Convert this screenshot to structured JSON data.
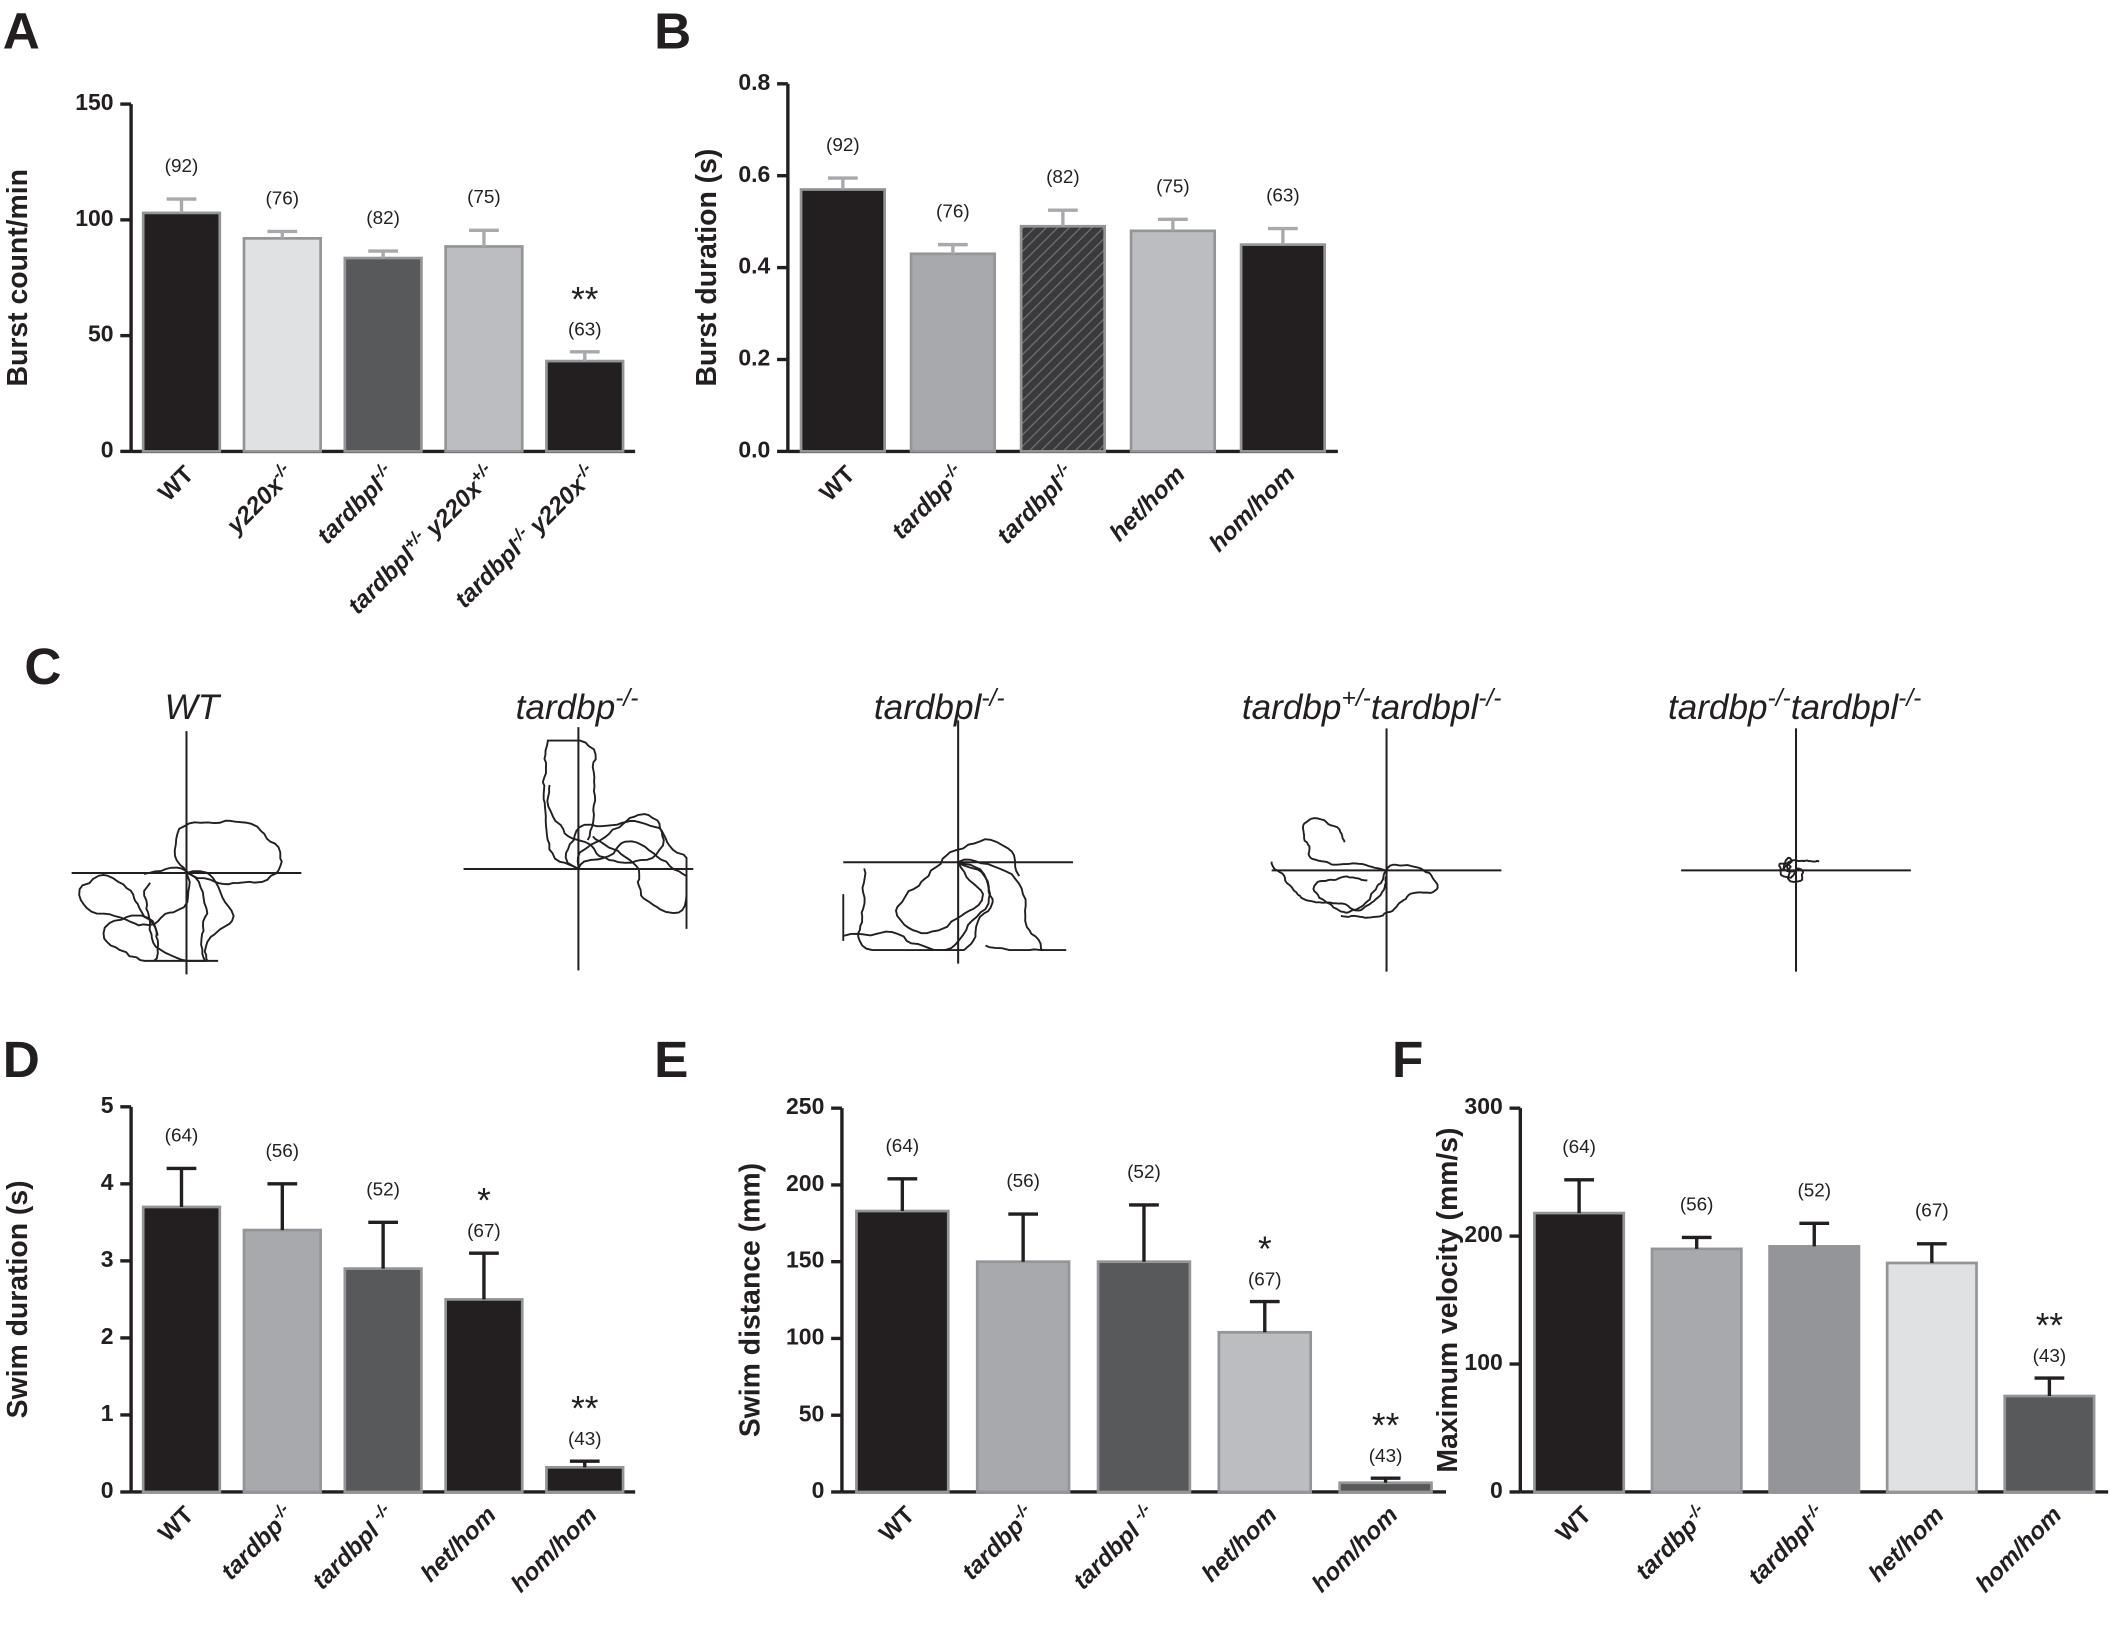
{
  "chart_data": [
    {
      "type": "bar",
      "panel_label": "A",
      "y_label": "Burst count/min",
      "categories": [
        "WT",
        "y220x-/-",
        "tardbpl-/-",
        "tardbpl+/- y220x+/-",
        "tardbpl-/- y220x-/-"
      ],
      "values": [
        103,
        92,
        83.5,
        88.5,
        39
      ],
      "errors": [
        6,
        3,
        3,
        7,
        4
      ],
      "colors": [
        "#231f20",
        "#e0e1e2",
        "#58595b",
        "#bcbdc0",
        "#231f20"
      ],
      "error_color": "#a7a9ac",
      "n_labels": [
        "(92)",
        "(76)",
        "(82)",
        "(75)",
        "(63)"
      ],
      "significance": [
        null,
        null,
        null,
        null,
        "**"
      ],
      "ylim": [
        0,
        150
      ],
      "yticks": [
        0,
        50,
        100,
        150
      ]
    },
    {
      "type": "bar",
      "panel_label": "B",
      "y_label": "Burst duration (s)",
      "categories": [
        "WT",
        "tardbp-/-",
        "tardbpl-/-",
        "het/hom",
        "hom/hom"
      ],
      "values": [
        0.57,
        0.43,
        0.49,
        0.48,
        0.45
      ],
      "errors": [
        0.025,
        0.02,
        0.035,
        0.025,
        0.035
      ],
      "colors": [
        "#231f20",
        "#a7a9ac",
        "#3a3a3c",
        "#bcbdc0",
        "#231f20"
      ],
      "hatched": [
        false,
        false,
        true,
        false,
        false
      ],
      "error_color": "#a7a9ac",
      "n_labels": [
        "(92)",
        "(76)",
        "(82)",
        "(75)",
        "(63)"
      ],
      "ylim": [
        0,
        0.8
      ],
      "yticks": [
        {
          "value": 0,
          "label": "0.0"
        },
        0.2,
        0.4,
        0.6,
        0.8
      ]
    },
    {
      "type": "bar",
      "panel_label": "D",
      "y_label": "Swim duration (s)",
      "categories": [
        "WT",
        "tardbp-/-",
        "tardbpl -/-",
        "het/hom",
        "hom/hom"
      ],
      "values": [
        3.7,
        3.4,
        2.9,
        2.5,
        0.32
      ],
      "errors": [
        0.5,
        0.6,
        0.6,
        0.6,
        0.08
      ],
      "colors": [
        "#231f20",
        "#a7a9ac",
        "#58595b",
        "#231f20",
        "#231f20"
      ],
      "error_color": "#231f20",
      "n_labels": [
        "(64)",
        "(56)",
        "(52)",
        "(67)",
        "(43)"
      ],
      "significance": [
        null,
        null,
        null,
        "*",
        "**"
      ],
      "ylim": [
        0,
        5
      ],
      "yticks": [
        0,
        1,
        2,
        3,
        4,
        5
      ]
    },
    {
      "type": "bar",
      "panel_label": "E",
      "y_label": "Swim distance (mm)",
      "categories": [
        "WT",
        "tardbp-/-",
        "tardbpl -/-",
        "het/hom",
        "hom/hom"
      ],
      "values": [
        183,
        150,
        150,
        104,
        6
      ],
      "errors": [
        21,
        31,
        37,
        20,
        3
      ],
      "colors": [
        "#231f20",
        "#a7a9ac",
        "#58595b",
        "#bcbdc0",
        "#58595b"
      ],
      "error_color": "#231f20",
      "n_labels": [
        "(64)",
        "(56)",
        "(52)",
        "(67)",
        "(43)"
      ],
      "significance": [
        null,
        null,
        null,
        "*",
        "**"
      ],
      "ylim": [
        0,
        250
      ],
      "yticks": [
        0,
        50,
        100,
        150,
        200,
        250
      ]
    },
    {
      "type": "bar",
      "panel_label": "F",
      "y_label": "Maximum velocity (mm/s)",
      "categories": [
        "WT",
        "tardbp-/-",
        "tardbpl-/-",
        "het/hom",
        "hom/hom"
      ],
      "values": [
        218,
        190,
        192,
        179,
        75
      ],
      "errors": [
        26,
        9,
        18,
        15,
        14
      ],
      "colors": [
        "#231f20",
        "#a7a9ac",
        "#939598",
        "#e0e1e2",
        "#58595b"
      ],
      "error_color": "#231f20",
      "n_labels": [
        "(64)",
        "(56)",
        "(52)",
        "(67)",
        "(43)"
      ],
      "significance": [
        null,
        null,
        null,
        null,
        "**"
      ],
      "ylim": [
        0,
        300
      ],
      "yticks": [
        0,
        100,
        200,
        300
      ]
    }
  ],
  "panel_c": {
    "label": "C",
    "titles": [
      "WT",
      "tardbp-/-",
      "tardbpl-/-",
      "tardbp+/-tardbpl-/-",
      "tardbp-/-tardbpl-/-"
    ]
  }
}
